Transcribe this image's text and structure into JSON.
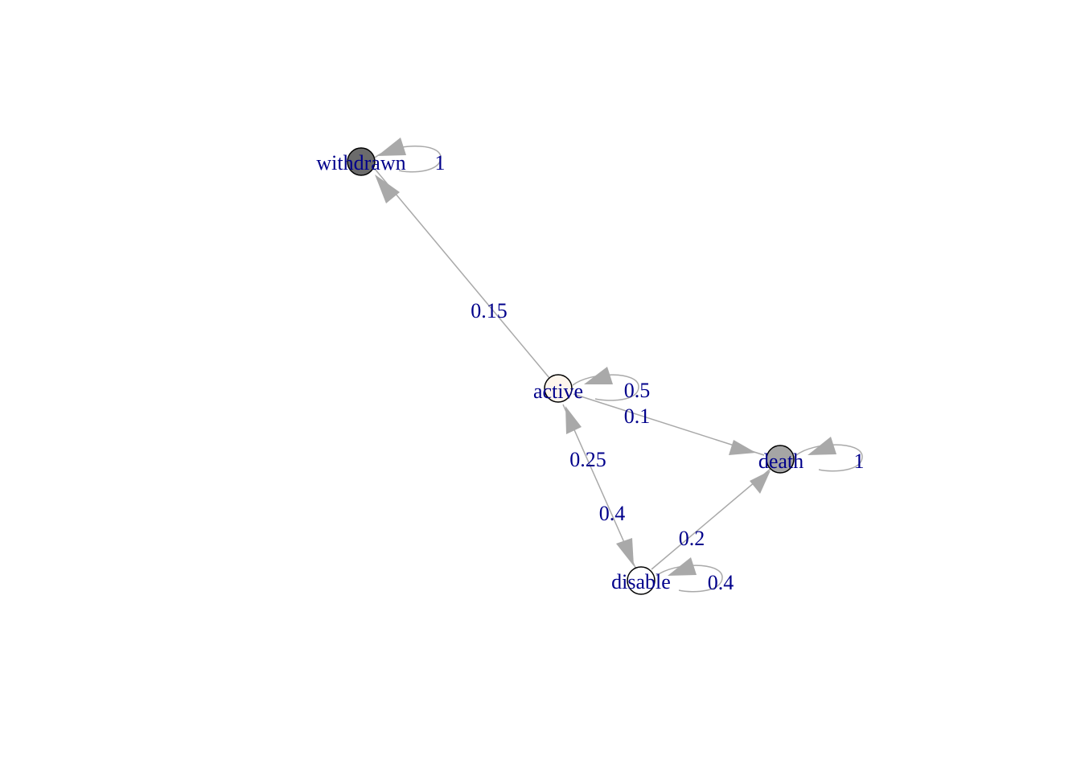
{
  "colors": {
    "edge": "#a9a9a9",
    "label": "#00008b",
    "node_stroke": "#000000",
    "withdrawn_fill": "#6b6b6b",
    "death_fill": "#a5a5a5",
    "active_fill": "#fdf5ec",
    "disable_fill": "#ffffff"
  },
  "nodes": [
    {
      "id": "withdrawn",
      "label": "withdrawn",
      "fill": "#6b6b6b"
    },
    {
      "id": "active",
      "label": "active",
      "fill": "#fdf5ec"
    },
    {
      "id": "death",
      "label": "death",
      "fill": "#a5a5a5"
    },
    {
      "id": "disable",
      "label": "disable",
      "fill": "#ffffff"
    }
  ],
  "edges": [
    {
      "from": "withdrawn",
      "to": "withdrawn",
      "label": "1"
    },
    {
      "from": "active",
      "to": "withdrawn",
      "label": "0.15"
    },
    {
      "from": "active",
      "to": "active",
      "label": "0.5"
    },
    {
      "from": "active",
      "to": "death",
      "label": "0.1"
    },
    {
      "from": "disable",
      "to": "active",
      "label": "0.25"
    },
    {
      "from": "active",
      "to": "disable",
      "label": "0.4"
    },
    {
      "from": "disable",
      "to": "death",
      "label": "0.2"
    },
    {
      "from": "disable",
      "to": "disable",
      "label": "0.4"
    },
    {
      "from": "death",
      "to": "death",
      "label": "1"
    }
  ]
}
